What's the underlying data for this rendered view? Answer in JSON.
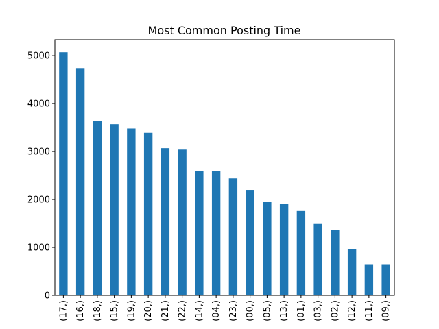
{
  "chart_data": {
    "type": "bar",
    "title": "Most Common Posting Time",
    "xlabel": "",
    "ylabel": "",
    "categories": [
      "(17,)",
      "(16,)",
      "(18,)",
      "(15,)",
      "(19,)",
      "(20,)",
      "(21,)",
      "(22,)",
      "(14,)",
      "(04,)",
      "(23,)",
      "(00,)",
      "(05,)",
      "(13,)",
      "(01,)",
      "(03,)",
      "(02,)",
      "(12,)",
      "(11,)",
      "(09,)"
    ],
    "values": [
      5070,
      4740,
      3640,
      3570,
      3480,
      3390,
      3070,
      3040,
      2590,
      2590,
      2440,
      2200,
      1950,
      1910,
      1760,
      1490,
      1360,
      970,
      650,
      650
    ],
    "ylim": [
      0,
      5330
    ],
    "yticks": [
      0,
      1000,
      2000,
      3000,
      4000,
      5000
    ],
    "grid": false,
    "legend": "none",
    "bar_color": "#1f77b4"
  }
}
